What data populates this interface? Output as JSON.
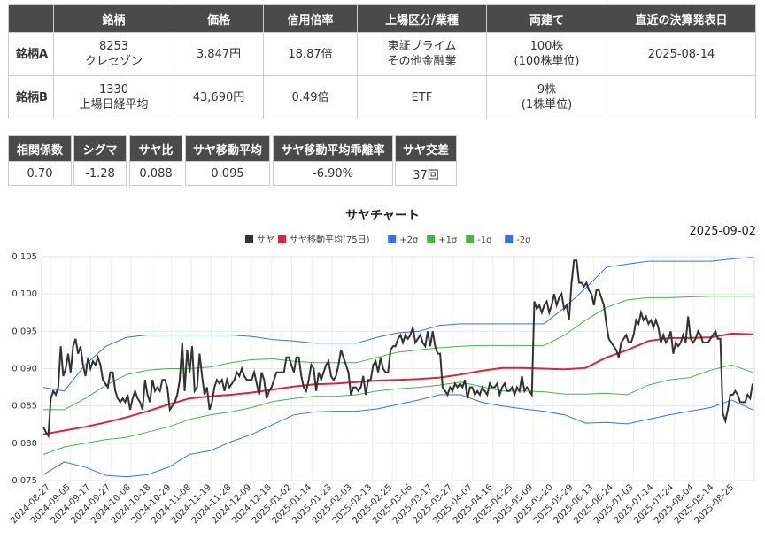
{
  "table": {
    "headers": [
      "",
      "銘柄",
      "価格",
      "信用倍率",
      "上場区分/業種",
      "両建て",
      "直近の決算発表日"
    ],
    "rows": [
      {
        "label": "銘柄A",
        "code": "8253",
        "name": "クレセゾン",
        "price": "3,847円",
        "margin": "18.87倍",
        "market": "東証プライム",
        "sector": "その他金融業",
        "hedge": "100株",
        "hedge_unit": "(100株単位)",
        "earnings": "2025-08-14"
      },
      {
        "label": "銘柄B",
        "code": "1330",
        "name": "上場日経平均",
        "price": "43,690円",
        "margin": "0.49倍",
        "market": "ETF",
        "sector": "",
        "hedge": "9株",
        "hedge_unit": "(1株単位)",
        "earnings": ""
      }
    ]
  },
  "stats": [
    {
      "label": "相関係数",
      "value": "0.70"
    },
    {
      "label": "シグマ",
      "value": "-1.28"
    },
    {
      "label": "サヤ比",
      "value": "0.088"
    },
    {
      "label": "サヤ移動平均",
      "value": "0.095"
    },
    {
      "label": "サヤ移動平均乖離率",
      "value": "-6.90%"
    },
    {
      "label": "サヤ交差",
      "value": "37回"
    }
  ],
  "chart_data": {
    "type": "line",
    "title": "サヤチャート",
    "date": "2025-09-02",
    "ylim": [
      0.075,
      0.105
    ],
    "yticks": [
      "0.105",
      "0.100",
      "0.095",
      "0.090",
      "0.085",
      "0.080",
      "0.075"
    ],
    "xticks": [
      "2024-08-27",
      "2024-09-05",
      "2024-09-17",
      "2024-09-27",
      "2024-10-08",
      "2024-10-18",
      "2024-10-29",
      "2024-11-08",
      "2024-11-19",
      "2024-11-28",
      "2024-12-09",
      "2024-12-18",
      "2025-01-02",
      "2025-01-14",
      "2025-01-23",
      "2025-02-03",
      "2025-02-13",
      "2025-02-25",
      "2025-03-06",
      "2025-03-17",
      "2025-03-27",
      "2025-04-07",
      "2025-04-16",
      "2025-04-25",
      "2025-05-09",
      "2025-05-20",
      "2025-05-29",
      "2025-06-13",
      "2025-06-24",
      "2025-07-03",
      "2025-07-14",
      "2025-07-24",
      "2025-08-04",
      "2025-08-14",
      "2025-08-25"
    ],
    "legend_position": "top-center",
    "series": [
      {
        "name": "サヤ",
        "color": "#333333",
        "values": [
          0.0822,
          0.0815,
          0.081,
          0.086,
          0.087,
          0.0865,
          0.0875,
          0.093,
          0.089,
          0.09,
          0.092,
          0.0895,
          0.093,
          0.094,
          0.092,
          0.093,
          0.0905,
          0.089,
          0.0915,
          0.09,
          0.091,
          0.0905,
          0.0915,
          0.0905,
          0.0885,
          0.088,
          0.0875,
          0.0895,
          0.0895,
          0.087,
          0.086,
          0.0855,
          0.086,
          0.0855,
          0.0865,
          0.0845,
          0.086,
          0.087,
          0.086,
          0.0855,
          0.0845,
          0.0885,
          0.0865,
          0.0855,
          0.0885,
          0.087,
          0.0875,
          0.087,
          0.0885,
          0.0885,
          0.0875,
          0.0845,
          0.085,
          0.0855,
          0.0865,
          0.0885,
          0.0935,
          0.087,
          0.0925,
          0.0895,
          0.093,
          0.087,
          0.0875,
          0.092,
          0.089,
          0.0865,
          0.0875,
          0.0845,
          0.0855,
          0.0875,
          0.0885,
          0.088,
          0.0885,
          0.087,
          0.0885,
          0.0875,
          0.088,
          0.0885,
          0.0895,
          0.089,
          0.09,
          0.089,
          0.0885,
          0.0885,
          0.0885,
          0.0895,
          0.088,
          0.0865,
          0.0895,
          0.0885,
          0.086,
          0.087,
          0.0875,
          0.0885,
          0.0895,
          0.0895,
          0.0895,
          0.0895,
          0.0915,
          0.0915,
          0.0905,
          0.0895,
          0.0915,
          0.0915,
          0.089,
          0.0875,
          0.087,
          0.0885,
          0.0905,
          0.09,
          0.087,
          0.0895,
          0.0885,
          0.0895,
          0.0905,
          0.091,
          0.089,
          0.0885,
          0.089,
          0.0905,
          0.0925,
          0.0915,
          0.0905,
          0.0895,
          0.0865,
          0.0875,
          0.0875,
          0.087,
          0.0875,
          0.089,
          0.0865,
          0.0885,
          0.0885,
          0.0905,
          0.091,
          0.0895,
          0.0915,
          0.09,
          0.0895,
          0.0895,
          0.0925,
          0.093,
          0.093,
          0.094,
          0.0945,
          0.0935,
          0.0945,
          0.094,
          0.0945,
          0.0955,
          0.0935,
          0.094,
          0.0945,
          0.0935,
          0.093,
          0.095,
          0.093,
          0.095,
          0.093,
          0.092,
          0.092,
          0.0875,
          0.087,
          0.0865,
          0.0875,
          0.087,
          0.088,
          0.0875,
          0.088,
          0.0875,
          0.0885,
          0.086,
          0.0875,
          0.0875,
          0.0865,
          0.087,
          0.0865,
          0.0875,
          0.087,
          0.0865,
          0.088,
          0.0875,
          0.0875,
          0.088,
          0.0865,
          0.0875,
          0.088,
          0.087,
          0.087,
          0.0875,
          0.0865,
          0.0875,
          0.087,
          0.089,
          0.087,
          0.0875,
          0.087,
          0.0865,
          0.099,
          0.098,
          0.0985,
          0.0975,
          0.0985,
          0.099,
          0.0975,
          0.0985,
          0.1,
          0.0985,
          0.0995,
          0.1,
          0.098,
          0.0985,
          0.0965,
          0.1015,
          0.1045,
          0.1045,
          0.1015,
          0.1015,
          0.101,
          0.1015,
          0.1005,
          0.1,
          0.0985,
          0.1005,
          0.1005,
          0.0995,
          0.0985,
          0.096,
          0.094,
          0.0935,
          0.093,
          0.0925,
          0.0915,
          0.0935,
          0.094,
          0.0945,
          0.0935,
          0.0935,
          0.0945,
          0.0965,
          0.096,
          0.0975,
          0.0965,
          0.097,
          0.096,
          0.0965,
          0.0955,
          0.0965,
          0.0955,
          0.0935,
          0.0945,
          0.0935,
          0.094,
          0.095,
          0.092,
          0.0935,
          0.093,
          0.0935,
          0.0945,
          0.0935,
          0.097,
          0.094,
          0.0935,
          0.094,
          0.095,
          0.0945,
          0.0935,
          0.0935,
          0.0935,
          0.094,
          0.0945,
          0.095,
          0.094,
          0.094,
          0.084,
          0.083,
          0.0845,
          0.0865,
          0.0865,
          0.087,
          0.0865,
          0.0855,
          0.0855,
          0.0855,
          0.0865,
          0.086,
          0.088
        ]
      },
      {
        "name": "サヤ移動平均(75日)",
        "color": "#d7263d",
        "values": [
          0.0812,
          0.0817,
          0.0822,
          0.0828,
          0.0835,
          0.0843,
          0.0852,
          0.086,
          0.0863,
          0.0865,
          0.0868,
          0.0872,
          0.0876,
          0.0879,
          0.088,
          0.0882,
          0.0884,
          0.0885,
          0.0886,
          0.0888,
          0.0892,
          0.0897,
          0.0901,
          0.0901,
          0.09,
          0.0899,
          0.0901,
          0.0915,
          0.0925,
          0.0937,
          0.0941,
          0.0941,
          0.0942,
          0.0947,
          0.0946
        ]
      },
      {
        "name": "+2σ",
        "color": "#3b6fe8",
        "values": [
          0.0875,
          0.087,
          0.0905,
          0.093,
          0.0942,
          0.0945,
          0.0945,
          0.0945,
          0.0945,
          0.0945,
          0.0943,
          0.0939,
          0.0937,
          0.0934,
          0.0934,
          0.0934,
          0.0942,
          0.0948,
          0.095,
          0.0958,
          0.096,
          0.096,
          0.096,
          0.096,
          0.096,
          0.0982,
          0.1008,
          0.1036,
          0.104,
          0.1044,
          0.1044,
          0.1044,
          0.1044,
          0.1047,
          0.1049
        ]
      },
      {
        "name": "+1σ",
        "color": "#4caf50",
        "values": [
          0.0845,
          0.0845,
          0.086,
          0.0878,
          0.0892,
          0.0898,
          0.09,
          0.09,
          0.0902,
          0.0908,
          0.0912,
          0.0913,
          0.091,
          0.0908,
          0.0908,
          0.0908,
          0.0915,
          0.0922,
          0.0925,
          0.0928,
          0.093,
          0.0931,
          0.0931,
          0.0931,
          0.0931,
          0.0945,
          0.0965,
          0.0982,
          0.0992,
          0.0995,
          0.0995,
          0.0996,
          0.0997,
          0.0997,
          0.0997
        ]
      },
      {
        "name": "-1σ",
        "color": "#4caf50",
        "values": [
          0.0785,
          0.0795,
          0.08,
          0.0805,
          0.0808,
          0.0815,
          0.0822,
          0.0832,
          0.0838,
          0.0842,
          0.0848,
          0.0856,
          0.086,
          0.0863,
          0.0863,
          0.0865,
          0.087,
          0.0873,
          0.0875,
          0.0878,
          0.0882,
          0.0876,
          0.087,
          0.087,
          0.0869,
          0.0866,
          0.0866,
          0.0867,
          0.0865,
          0.0878,
          0.0885,
          0.0888,
          0.0898,
          0.0905,
          0.0895
        ]
      },
      {
        "name": "-2σ",
        "color": "#3b6fe8",
        "values": [
          0.0758,
          0.0775,
          0.0768,
          0.0757,
          0.0755,
          0.0758,
          0.0768,
          0.0785,
          0.079,
          0.0802,
          0.0812,
          0.0825,
          0.0838,
          0.0842,
          0.0843,
          0.0843,
          0.0846,
          0.0852,
          0.0858,
          0.0865,
          0.0865,
          0.0855,
          0.085,
          0.0846,
          0.0843,
          0.0838,
          0.0827,
          0.0828,
          0.0826,
          0.0832,
          0.0838,
          0.0843,
          0.0848,
          0.0858,
          0.0845
        ]
      }
    ]
  }
}
